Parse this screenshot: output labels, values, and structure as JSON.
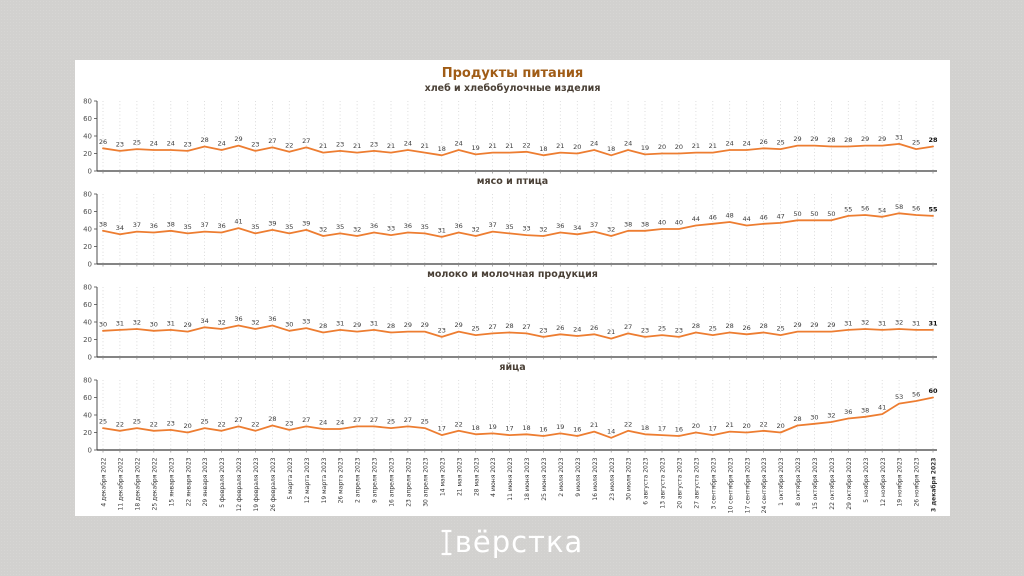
{
  "header": {
    "title": "Продукты питания"
  },
  "footer": {
    "logo_icon": "text-cursor-icon",
    "logo_text": "вёрстка"
  },
  "colors": {
    "page_bg": "#d2d1cf",
    "card_bg": "#ffffff",
    "title": "#a05c16",
    "subplot_title": "#4a4036",
    "line": "#ed7d31",
    "value_label": "#3b3b3b",
    "value_label_last": "#111111",
    "axis": "#4d4d4d",
    "x_axis": "#3a3a3a",
    "tick_label": "#4d4d4d",
    "date_label": "#333333",
    "grid": "#c9c9c9",
    "watermark_text": "#ffffff"
  },
  "chart_data": {
    "type": "line",
    "title": "Продукты питания",
    "layout": "4 stacked subplots sharing one weekly x-axis, vertical dotted gridline per category, legend none, every point labeled with its value, last point label bold",
    "ylim": [
      0,
      80
    ],
    "yticks": [
      0,
      20,
      40,
      60,
      80
    ],
    "categories": [
      "4 декабря 2022",
      "11 декабря 2022",
      "18 декабря 2022",
      "25 декабря 2022",
      "15 января 2023",
      "22 января 2023",
      "29 января 2023",
      "5 февраля 2023",
      "12 февраля 2023",
      "19 февраля 2023",
      "26 февраля 2023",
      "5 марта 2023",
      "12 марта 2023",
      "19 марта 2023",
      "26 марта 2023",
      "2 апреля 2023",
      "9 апреля 2023",
      "16 апреля 2023",
      "23 апреля 2023",
      "30 апреля 2023",
      "14 мая 2023",
      "21 мая 2023",
      "28 мая 2023",
      "4 июня 2023",
      "11 июня 2023",
      "18 июня 2023",
      "25 июня 2023",
      "2 июля 2023",
      "9 июля 2023",
      "16 июля 2023",
      "23 июля 2023",
      "30 июля 2023",
      "6 августа 2023",
      "13 августа 2023",
      "20 августа 2023",
      "27 августа 2023",
      "3 сентября 2023",
      "10 сентября 2023",
      "17 сентября 2023",
      "24 сентября 2023",
      "1 октября 2023",
      "8 октября 2023",
      "15 октября 2023",
      "22 октября 2023",
      "29 октября 2023",
      "5 ноября 2023",
      "12 ноября 2023",
      "19 ноября 2023",
      "26 ноября 2023",
      "3 декабря 2023"
    ],
    "series": [
      {
        "name": "хлеб и хлебобулочные изделия",
        "values": [
          26,
          23,
          25,
          24,
          24,
          23,
          28,
          24,
          29,
          23,
          27,
          22,
          27,
          21,
          23,
          21,
          23,
          21,
          24,
          21,
          18,
          24,
          19,
          21,
          21,
          22,
          18,
          21,
          20,
          24,
          18,
          24,
          19,
          20,
          20,
          21,
          21,
          24,
          24,
          26,
          25,
          29,
          29,
          28,
          28,
          29,
          29,
          31,
          25,
          28
        ]
      },
      {
        "name": "мясо и птица",
        "values": [
          38,
          34,
          37,
          36,
          38,
          35,
          37,
          36,
          41,
          35,
          39,
          35,
          39,
          32,
          35,
          32,
          36,
          33,
          36,
          35,
          31,
          36,
          32,
          37,
          35,
          33,
          32,
          36,
          34,
          37,
          32,
          38,
          38,
          40,
          40,
          44,
          46,
          48,
          44,
          46,
          47,
          50,
          50,
          50,
          55,
          56,
          54,
          58,
          56,
          55
        ]
      },
      {
        "name": "молоко и молочная продукция",
        "values": [
          30,
          31,
          32,
          30,
          31,
          29,
          34,
          32,
          36,
          32,
          36,
          30,
          33,
          28,
          31,
          29,
          31,
          28,
          29,
          29,
          23,
          29,
          25,
          27,
          28,
          27,
          23,
          26,
          24,
          26,
          21,
          27,
          23,
          25,
          23,
          28,
          25,
          28,
          26,
          28,
          25,
          29,
          29,
          29,
          31,
          32,
          31,
          32,
          31,
          31
        ]
      },
      {
        "name": "яйца",
        "values": [
          25,
          22,
          25,
          22,
          23,
          20,
          25,
          22,
          27,
          22,
          28,
          23,
          27,
          24,
          24,
          27,
          27,
          25,
          27,
          25,
          17,
          22,
          18,
          19,
          17,
          18,
          16,
          19,
          16,
          21,
          14,
          22,
          18,
          17,
          16,
          20,
          17,
          21,
          20,
          22,
          20,
          28,
          30,
          32,
          36,
          38,
          41,
          53,
          56,
          60
        ]
      }
    ]
  }
}
